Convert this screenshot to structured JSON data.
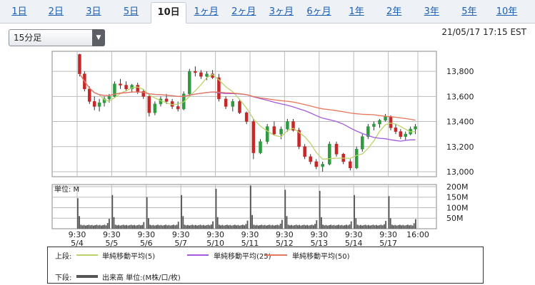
{
  "tabs": [
    "1日",
    "2日",
    "3日",
    "5日",
    "10日",
    "1ヶ月",
    "2ヶ月",
    "3ヶ月",
    "6ヶ月",
    "1年",
    "2年",
    "3年",
    "5年",
    "10年"
  ],
  "active_tab": "10日",
  "interval_select": {
    "value": "15分足"
  },
  "timestamp": "21/05/17 17:15 EST",
  "legend": {
    "upper_label": "上段:",
    "lower_label": "下段:",
    "items": [
      {
        "label": "単純移動平均(5)",
        "color": "#b9d46a"
      },
      {
        "label": "単純移動平均(25)",
        "color": "#a35ae0"
      },
      {
        "label": "単純移動平均(50)",
        "color": "#e8765a"
      }
    ],
    "volume_label": "出来高 単位:(M株/口/枚)",
    "volume_color": "#555555"
  },
  "chart_data": [
    {
      "type": "candlestick",
      "panel": "price",
      "yticks": [
        13000,
        13200,
        13400,
        13600,
        13800
      ],
      "ytick_labels": [
        "13,000",
        "13,200",
        "13,400",
        "13,600",
        "13,800"
      ],
      "ylim": [
        12960,
        13960
      ],
      "up_color": "#2e9b3e",
      "down_color": "#c62828",
      "sessions": [
        {
          "date": "5/4",
          "ohlc": [
            [
              13935,
              13940,
              13760,
              13780
            ],
            [
              13780,
              13800,
              13640,
              13660
            ],
            [
              13660,
              13680,
              13540,
              13560
            ],
            [
              13560,
              13600,
              13490,
              13520
            ],
            [
              13520,
              13580,
              13480,
              13550
            ],
            [
              13550,
              13600,
              13520,
              13580
            ],
            [
              13580,
              13620,
              13550,
              13600
            ]
          ]
        },
        {
          "date": "5/5",
          "ohlc": [
            [
              13600,
              13720,
              13590,
              13700
            ],
            [
              13700,
              13740,
              13660,
              13690
            ],
            [
              13690,
              13720,
              13640,
              13660
            ],
            [
              13660,
              13700,
              13630,
              13690
            ],
            [
              13690,
              13710,
              13620,
              13640
            ],
            [
              13640,
              13660,
              13580,
              13600
            ]
          ]
        },
        {
          "date": "5/6",
          "ohlc": [
            [
              13600,
              13620,
              13440,
              13470
            ],
            [
              13470,
              13560,
              13450,
              13540
            ],
            [
              13540,
              13600,
              13520,
              13580
            ],
            [
              13580,
              13620,
              13540,
              13560
            ],
            [
              13560,
              13580,
              13500,
              13520
            ],
            [
              13520,
              13560,
              13480,
              13500
            ]
          ]
        },
        {
          "date": "5/7",
          "ohlc": [
            [
              13500,
              13640,
              13490,
              13620
            ],
            [
              13620,
              13820,
              13600,
              13800
            ],
            [
              13800,
              13840,
              13760,
              13790
            ],
            [
              13790,
              13810,
              13740,
              13760
            ],
            [
              13760,
              13800,
              13730,
              13780
            ],
            [
              13780,
              13810,
              13740,
              13750
            ]
          ]
        },
        {
          "date": "5/10",
          "ohlc": [
            [
              13750,
              13780,
              13560,
              13580
            ],
            [
              13580,
              13600,
              13500,
              13520
            ],
            [
              13520,
              13580,
              13480,
              13560
            ],
            [
              13560,
              13580,
              13460,
              13470
            ],
            [
              13470,
              13480,
              13380,
              13400
            ]
          ]
        },
        {
          "date": "5/11",
          "ohlc": [
            [
              13400,
              13420,
              13100,
              13150
            ],
            [
              13150,
              13260,
              13140,
              13240
            ],
            [
              13240,
              13380,
              13220,
              13360
            ],
            [
              13360,
              13400,
              13290,
              13300
            ],
            [
              13300,
              13360,
              13260,
              13340
            ]
          ]
        },
        {
          "date": "5/12",
          "ohlc": [
            [
              13340,
              13420,
              13320,
              13400
            ],
            [
              13400,
              13420,
              13320,
              13330
            ],
            [
              13330,
              13350,
              13180,
              13200
            ],
            [
              13200,
              13220,
              13100,
              13120
            ],
            [
              13120,
              13140,
              13060,
              13080
            ],
            [
              13080,
              13100,
              13020,
              13040
            ]
          ]
        },
        {
          "date": "5/13",
          "ohlc": [
            [
              13040,
              13080,
              13000,
              13060
            ],
            [
              13060,
              13240,
              13050,
              13220
            ],
            [
              13220,
              13240,
              13120,
              13140
            ],
            [
              13140,
              13150,
              13060,
              13080
            ],
            [
              13080,
              13100,
              13010,
              13030
            ]
          ]
        },
        {
          "date": "5/14",
          "ohlc": [
            [
              13030,
              13200,
              13020,
              13180
            ],
            [
              13180,
              13300,
              13160,
              13280
            ],
            [
              13280,
              13380,
              13260,
              13360
            ],
            [
              13360,
              13400,
              13330,
              13380
            ],
            [
              13380,
              13420,
              13350,
              13410
            ],
            [
              13410,
              13460,
              13400,
              13440
            ]
          ]
        },
        {
          "date": "5/17",
          "ohlc": [
            [
              13440,
              13450,
              13330,
              13350
            ],
            [
              13350,
              13380,
              13300,
              13320
            ],
            [
              13320,
              13340,
              13260,
              13280
            ],
            [
              13280,
              13320,
              13250,
              13300
            ],
            [
              13300,
              13360,
              13290,
              13340
            ],
            [
              13340,
              13380,
              13300,
              13360
            ]
          ]
        }
      ],
      "sma_periods": [
        5,
        25,
        50
      ]
    },
    {
      "type": "bar",
      "panel": "volume",
      "title": "単位: M",
      "yticks": [
        50,
        100,
        150,
        200
      ],
      "ytick_labels": [
        "50M",
        "100M",
        "150M",
        "200M"
      ],
      "ylim": [
        0,
        210
      ],
      "color": "#555555",
      "session_opening_volumes": [
        {
          "date": "5/4",
          "values": [
            145,
            60
          ]
        },
        {
          "date": "5/5",
          "values": [
            160,
            55
          ]
        },
        {
          "date": "5/6",
          "values": [
            150,
            50
          ]
        },
        {
          "date": "5/7",
          "values": [
            160,
            60
          ]
        },
        {
          "date": "5/10",
          "values": [
            190,
            55
          ]
        },
        {
          "date": "5/11",
          "values": [
            205,
            65
          ]
        },
        {
          "date": "5/12",
          "values": [
            185,
            60
          ]
        },
        {
          "date": "5/13",
          "values": [
            180,
            55
          ]
        },
        {
          "date": "5/14",
          "values": [
            160,
            50
          ]
        },
        {
          "date": "5/17",
          "values": [
            155,
            50
          ]
        }
      ],
      "session_closing_volume": [
        135,
        90,
        95,
        100,
        110,
        120,
        115,
        100,
        105,
        130
      ],
      "baseline_volume": 15
    },
    {
      "type": "axis",
      "x_tick_times": [
        "9:30",
        "9:30",
        "9:30",
        "9:30",
        "9:30",
        "9:30",
        "9:30",
        "9:30",
        "9:30",
        "9:30",
        "16:00"
      ],
      "x_tick_dates": [
        "5/4",
        "5/5",
        "5/6",
        "5/7",
        "5/10",
        "5/11",
        "5/12",
        "5/13",
        "5/14",
        "5/17",
        ""
      ]
    }
  ]
}
